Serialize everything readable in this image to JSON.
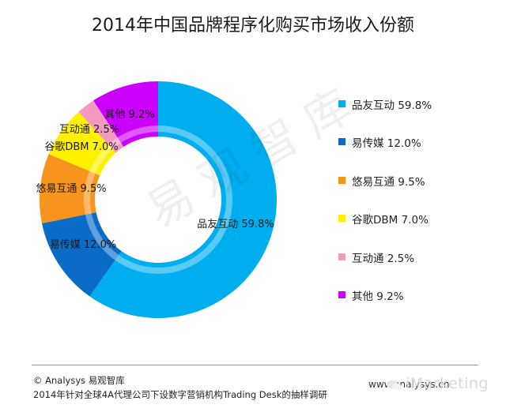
{
  "chart_data": {
    "type": "pie",
    "title": "2014年中国品牌程序化购买市场收入份额",
    "categories": [
      "品友互动",
      "易传媒",
      "悠易互通",
      "谷歌DBM",
      "互动通",
      "其他"
    ],
    "values": [
      59.8,
      12.0,
      9.5,
      7.0,
      2.5,
      9.2
    ],
    "value_labels": [
      "59.8%",
      "12.0%",
      "9.5%",
      "7.0%",
      "2.5%",
      "9.2%"
    ],
    "colors": [
      "#00aeef",
      "#0a6cc7",
      "#f7941d",
      "#fff200",
      "#f49ac1",
      "#cc00ff"
    ],
    "donut": true,
    "legend_position": "right"
  },
  "footer": {
    "copyright": "© Analysys 易观智库",
    "note": "2014年针对全球4A代理公司下设数字营销机构Trading Desk的抽样调研",
    "url": "www.analysys.cn",
    "brand": "iMarketing"
  },
  "watermark": "易观智库"
}
